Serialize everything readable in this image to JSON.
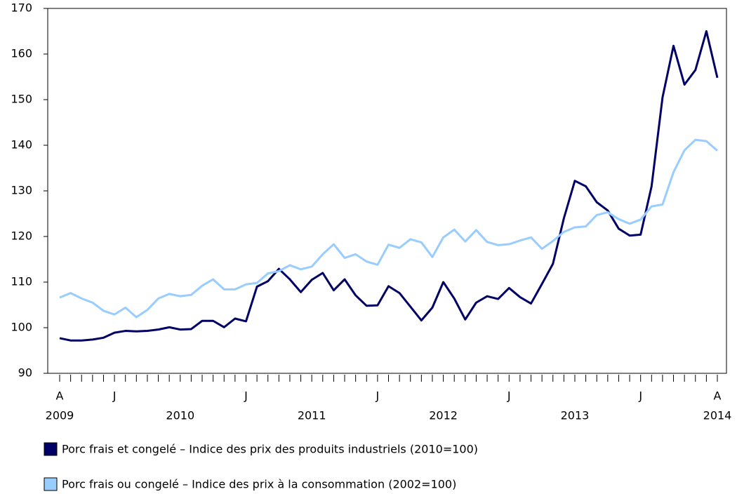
{
  "chart_data": {
    "type": "line",
    "categories": [
      "A",
      null,
      null,
      null,
      null,
      "J",
      null,
      null,
      null,
      null,
      null,
      null,
      null,
      null,
      null,
      null,
      null,
      "J",
      null,
      null,
      null,
      null,
      null,
      null,
      null,
      null,
      null,
      null,
      null,
      "J",
      null,
      null,
      null,
      null,
      null,
      null,
      null,
      null,
      null,
      null,
      null,
      "J",
      null,
      null,
      null,
      null,
      null,
      null,
      null,
      null,
      null,
      null,
      null,
      "J",
      null,
      null,
      null,
      null,
      null,
      null,
      "A"
    ],
    "year_labels": [
      "2009",
      "2010",
      "2011",
      "2012",
      "2013",
      "2014"
    ],
    "series": [
      {
        "name": "Porc frais et congelé – Indice des prix des produits industriels (2010=100)",
        "color": "#000066",
        "values": [
          97.7,
          97.2,
          97.2,
          97.4,
          97.8,
          98.9,
          99.3,
          99.2,
          99.3,
          99.6,
          100.1,
          99.6,
          99.7,
          101.5,
          101.5,
          100.1,
          102.0,
          101.4,
          109.0,
          110.2,
          112.9,
          110.6,
          107.8,
          110.5,
          112.0,
          108.2,
          110.6,
          107.1,
          104.8,
          104.9,
          109.1,
          107.6,
          104.6,
          101.6,
          104.4,
          110.0,
          106.4,
          101.8,
          105.5,
          106.9,
          106.3,
          108.7,
          106.7,
          105.3,
          109.6,
          114.0,
          124.0,
          132.2,
          131.0,
          127.5,
          125.7,
          121.7,
          120.2,
          120.4,
          131.0,
          150.5,
          161.8,
          153.3,
          156.5,
          165.0,
          154.8
        ]
      },
      {
        "name": "Porc frais ou congelé – Indice des prix à la consommation (2002=100)",
        "color": "#99ccff",
        "values": [
          106.6,
          107.6,
          106.4,
          105.5,
          103.7,
          102.9,
          104.4,
          102.3,
          103.9,
          106.4,
          107.4,
          106.9,
          107.2,
          109.2,
          110.6,
          108.4,
          108.4,
          109.5,
          109.8,
          111.9,
          112.4,
          113.7,
          112.8,
          113.4,
          116.1,
          118.3,
          115.3,
          116.1,
          114.5,
          113.8,
          118.2,
          117.5,
          119.4,
          118.7,
          115.5,
          119.8,
          121.5,
          118.9,
          121.4,
          118.8,
          118.1,
          118.3,
          119.1,
          119.8,
          117.3,
          119.0,
          121.0,
          122.0,
          122.2,
          124.7,
          125.3,
          123.8,
          122.8,
          123.7,
          126.6,
          127.0,
          134.1,
          138.9,
          141.2,
          140.9,
          138.8
        ]
      }
    ],
    "ylim": [
      90,
      170
    ],
    "yticks": [
      90,
      100,
      110,
      120,
      130,
      140,
      150,
      160,
      170
    ],
    "grid": false
  }
}
